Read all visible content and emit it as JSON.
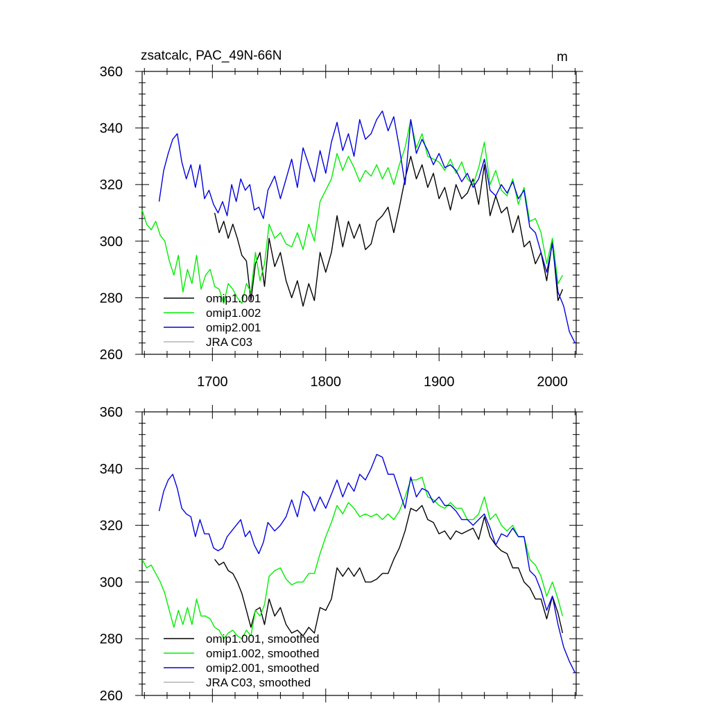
{
  "units_label": "m",
  "series_colors": {
    "omip1.001": "#000000",
    "omip1.002": "#00ee00",
    "omip2.001": "#0000dd",
    "JRA C03": "#b4b4b4"
  },
  "chart_data": [
    {
      "type": "line",
      "title": "zsatcalc, PAC_49N-66N",
      "units": "m",
      "xlim": [
        1638,
        2021
      ],
      "ylim": [
        260,
        360
      ],
      "x_ticks": [
        1700,
        1800,
        1900,
        2000
      ],
      "x_tick_labels": [
        "1700",
        "1800",
        "1900",
        "2000"
      ],
      "y_ticks": [
        260,
        280,
        300,
        320,
        340,
        360
      ],
      "y_tick_labels": [
        "260",
        "280",
        "300",
        "320",
        "340",
        "360"
      ],
      "legend_position": "bottom-left",
      "legend": [
        "omip1.001",
        "omip1.002",
        "omip2.001",
        "JRA C03"
      ],
      "series": [
        {
          "name": "omip1.001",
          "x": [
            1702,
            1706,
            1710,
            1714,
            1718,
            1722,
            1726,
            1730,
            1734,
            1738,
            1742,
            1746,
            1750,
            1755,
            1760,
            1765,
            1770,
            1775,
            1780,
            1785,
            1790,
            1795,
            1800,
            1805,
            1810,
            1815,
            1820,
            1825,
            1830,
            1835,
            1840,
            1845,
            1850,
            1855,
            1860,
            1865,
            1870,
            1875,
            1880,
            1885,
            1890,
            1895,
            1900,
            1905,
            1910,
            1915,
            1920,
            1925,
            1930,
            1935,
            1940,
            1945,
            1950,
            1955,
            1960,
            1965,
            1970,
            1975,
            1980,
            1985,
            1990,
            1995,
            2000,
            2005,
            2009
          ],
          "values": [
            310,
            303,
            307,
            301,
            306,
            301,
            295,
            293,
            279,
            292,
            296,
            284,
            301,
            291,
            296,
            286,
            280,
            286,
            277,
            285,
            279,
            296,
            289,
            296,
            309,
            298,
            307,
            301,
            306,
            297,
            299,
            307,
            309,
            312,
            303,
            312,
            322,
            330,
            322,
            327,
            319,
            324,
            315,
            319,
            311,
            320,
            315,
            317,
            322,
            313,
            327,
            309,
            316,
            310,
            312,
            303,
            309,
            298,
            300,
            292,
            296,
            286,
            300,
            279,
            283
          ]
        },
        {
          "name": "omip1.002",
          "x": [
            1638,
            1642,
            1646,
            1650,
            1654,
            1658,
            1662,
            1666,
            1670,
            1674,
            1678,
            1682,
            1686,
            1690,
            1694,
            1698,
            1702,
            1706,
            1710,
            1714,
            1718,
            1722,
            1726,
            1730,
            1734,
            1738,
            1742,
            1746,
            1750,
            1755,
            1760,
            1765,
            1770,
            1775,
            1780,
            1785,
            1790,
            1795,
            1800,
            1805,
            1810,
            1815,
            1820,
            1825,
            1830,
            1835,
            1840,
            1845,
            1850,
            1855,
            1860,
            1865,
            1870,
            1875,
            1880,
            1885,
            1890,
            1895,
            1900,
            1905,
            1910,
            1915,
            1920,
            1925,
            1930,
            1935,
            1940,
            1945,
            1950,
            1955,
            1960,
            1965,
            1970,
            1975,
            1980,
            1985,
            1990,
            1995,
            2000,
            2005,
            2009
          ],
          "values": [
            311,
            306,
            304,
            307,
            302,
            300,
            293,
            288,
            295,
            282,
            290,
            285,
            295,
            283,
            288,
            290,
            284,
            283,
            278,
            285,
            283,
            280,
            278,
            285,
            282,
            296,
            286,
            292,
            306,
            301,
            303,
            299,
            298,
            303,
            297,
            306,
            300,
            314,
            318,
            322,
            331,
            325,
            330,
            326,
            321,
            325,
            323,
            327,
            322,
            326,
            320,
            327,
            333,
            343,
            333,
            338,
            330,
            329,
            328,
            325,
            329,
            324,
            328,
            322,
            320,
            326,
            335,
            320,
            325,
            318,
            316,
            322,
            313,
            319,
            307,
            308,
            303,
            292,
            301,
            285,
            288
          ]
        },
        {
          "name": "omip2.001",
          "x": [
            1653,
            1657,
            1661,
            1665,
            1669,
            1673,
            1677,
            1681,
            1685,
            1689,
            1693,
            1697,
            1701,
            1705,
            1709,
            1713,
            1717,
            1721,
            1725,
            1729,
            1733,
            1737,
            1741,
            1745,
            1749,
            1755,
            1760,
            1765,
            1770,
            1775,
            1780,
            1785,
            1790,
            1795,
            1800,
            1805,
            1810,
            1815,
            1820,
            1825,
            1830,
            1835,
            1840,
            1845,
            1850,
            1855,
            1860,
            1865,
            1870,
            1875,
            1880,
            1885,
            1890,
            1895,
            1900,
            1905,
            1910,
            1915,
            1920,
            1925,
            1930,
            1935,
            1940,
            1945,
            1950,
            1955,
            1960,
            1965,
            1970,
            1975,
            1980,
            1985,
            1990,
            1995,
            2000,
            2005,
            2010,
            2015,
            2020
          ],
          "values": [
            314,
            325,
            331,
            336,
            338,
            328,
            322,
            327,
            319,
            327,
            315,
            318,
            313,
            310,
            314,
            309,
            320,
            314,
            322,
            318,
            320,
            311,
            312,
            308,
            318,
            323,
            315,
            322,
            329,
            319,
            333,
            327,
            321,
            332,
            324,
            335,
            342,
            332,
            338,
            330,
            343,
            336,
            338,
            343,
            346,
            339,
            344,
            333,
            320,
            343,
            331,
            336,
            332,
            327,
            331,
            326,
            327,
            325,
            321,
            324,
            319,
            322,
            329,
            318,
            316,
            320,
            317,
            321,
            315,
            318,
            305,
            303,
            296,
            289,
            299,
            282,
            277,
            268,
            264
          ]
        },
        {
          "name": "JRA C03",
          "x": [],
          "values": []
        }
      ]
    },
    {
      "type": "line",
      "title": "",
      "xlim": [
        1638,
        2021
      ],
      "ylim": [
        260,
        360
      ],
      "x_ticks": [
        1700,
        1800,
        1900,
        2000
      ],
      "x_tick_labels": [],
      "y_ticks": [
        260,
        280,
        300,
        320,
        340,
        360
      ],
      "y_tick_labels": [
        "260",
        "280",
        "300",
        "320",
        "340",
        "360"
      ],
      "legend_position": "bottom-left",
      "legend": [
        "omip1.001, smoothed",
        "omip1.002, smoothed",
        "omip2.001, smoothed",
        "JRA C03, smoothed"
      ],
      "series": [
        {
          "name": "omip1.001, smoothed",
          "x": [
            1702,
            1706,
            1710,
            1714,
            1718,
            1722,
            1726,
            1730,
            1734,
            1738,
            1742,
            1746,
            1750,
            1755,
            1760,
            1765,
            1770,
            1775,
            1780,
            1785,
            1790,
            1795,
            1800,
            1805,
            1810,
            1815,
            1820,
            1825,
            1830,
            1835,
            1840,
            1845,
            1850,
            1855,
            1860,
            1865,
            1870,
            1875,
            1880,
            1885,
            1890,
            1895,
            1900,
            1905,
            1910,
            1915,
            1920,
            1925,
            1930,
            1935,
            1940,
            1945,
            1950,
            1955,
            1960,
            1965,
            1970,
            1975,
            1980,
            1985,
            1990,
            1995,
            2000,
            2005,
            2009
          ],
          "values": [
            308,
            306,
            307,
            304,
            303,
            300,
            296,
            290,
            284,
            290,
            291,
            285,
            294,
            288,
            291,
            285,
            282,
            283,
            281,
            284,
            282,
            291,
            290,
            294,
            305,
            302,
            305,
            302,
            305,
            300,
            300,
            301,
            303,
            303,
            308,
            312,
            318,
            326,
            325,
            327,
            322,
            321,
            317,
            318,
            315,
            318,
            317,
            318,
            319,
            315,
            323,
            316,
            313,
            311,
            310,
            305,
            305,
            300,
            298,
            294,
            294,
            287,
            295,
            289,
            282
          ]
        },
        {
          "name": "omip1.002, smoothed",
          "x": [
            1638,
            1642,
            1646,
            1650,
            1654,
            1658,
            1662,
            1666,
            1670,
            1674,
            1678,
            1682,
            1686,
            1690,
            1694,
            1698,
            1702,
            1706,
            1710,
            1714,
            1718,
            1722,
            1726,
            1730,
            1734,
            1738,
            1742,
            1746,
            1750,
            1755,
            1760,
            1765,
            1770,
            1775,
            1780,
            1785,
            1790,
            1795,
            1800,
            1805,
            1810,
            1815,
            1820,
            1825,
            1830,
            1835,
            1840,
            1845,
            1850,
            1855,
            1860,
            1865,
            1870,
            1875,
            1880,
            1885,
            1890,
            1895,
            1900,
            1905,
            1910,
            1915,
            1920,
            1925,
            1930,
            1935,
            1940,
            1945,
            1950,
            1955,
            1960,
            1965,
            1970,
            1975,
            1980,
            1985,
            1990,
            1995,
            2000,
            2005,
            2009
          ],
          "values": [
            308,
            305,
            306,
            303,
            300,
            296,
            290,
            284,
            290,
            285,
            291,
            285,
            294,
            288,
            288,
            287,
            284,
            283,
            280,
            282,
            283,
            281,
            280,
            283,
            281,
            290,
            288,
            292,
            302,
            304,
            305,
            301,
            299,
            300,
            300,
            303,
            303,
            310,
            316,
            321,
            327,
            324,
            328,
            326,
            323,
            324,
            323,
            324,
            322,
            324,
            322,
            325,
            330,
            336,
            336,
            337,
            330,
            329,
            327,
            326,
            328,
            326,
            326,
            322,
            322,
            324,
            330,
            322,
            324,
            320,
            318,
            320,
            316,
            316,
            308,
            306,
            302,
            295,
            300,
            294,
            288
          ]
        },
        {
          "name": "omip2.001, smoothed",
          "x": [
            1653,
            1657,
            1661,
            1665,
            1669,
            1673,
            1677,
            1681,
            1685,
            1689,
            1693,
            1697,
            1701,
            1705,
            1709,
            1713,
            1717,
            1721,
            1725,
            1729,
            1733,
            1737,
            1741,
            1745,
            1749,
            1755,
            1760,
            1765,
            1770,
            1775,
            1780,
            1785,
            1790,
            1795,
            1800,
            1805,
            1810,
            1815,
            1820,
            1825,
            1830,
            1835,
            1840,
            1845,
            1850,
            1855,
            1860,
            1865,
            1870,
            1875,
            1880,
            1885,
            1890,
            1895,
            1900,
            1905,
            1910,
            1915,
            1920,
            1925,
            1930,
            1935,
            1940,
            1945,
            1950,
            1955,
            1960,
            1965,
            1970,
            1975,
            1980,
            1985,
            1990,
            1995,
            2000,
            2005,
            2010,
            2015,
            2020
          ],
          "values": [
            325,
            332,
            336,
            338,
            333,
            326,
            324,
            323,
            316,
            322,
            317,
            317,
            312,
            311,
            312,
            316,
            318,
            320,
            322,
            316,
            318,
            313,
            310,
            314,
            321,
            318,
            320,
            323,
            329,
            323,
            332,
            330,
            325,
            330,
            326,
            331,
            336,
            330,
            335,
            332,
            338,
            336,
            340,
            345,
            344,
            338,
            338,
            332,
            326,
            337,
            330,
            333,
            332,
            328,
            330,
            327,
            327,
            325,
            322,
            322,
            320,
            322,
            324,
            319,
            313,
            317,
            316,
            319,
            316,
            316,
            304,
            302,
            297,
            290,
            295,
            285,
            277,
            272,
            268
          ]
        },
        {
          "name": "JRA C03, smoothed",
          "x": [],
          "values": []
        }
      ]
    }
  ]
}
